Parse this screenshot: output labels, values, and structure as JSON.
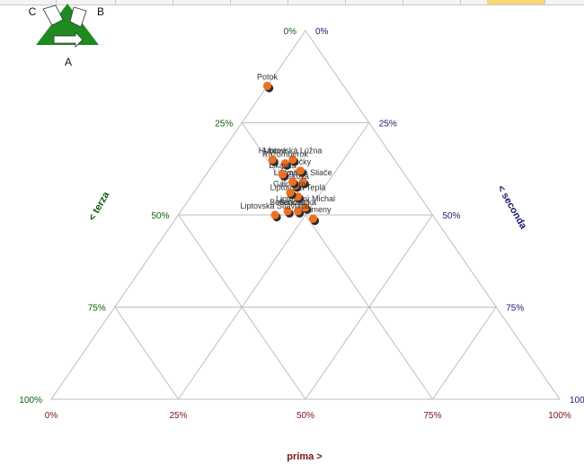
{
  "colors": {
    "grid": "#bdbdbd",
    "point": "#ee6f1f",
    "point_shadow": "#2a2a2a",
    "label": "#333333",
    "prima": "#7a1414",
    "seconda": "#1a1a6e",
    "terza": "#0e5a0e",
    "logo_green": "#1f8a1f"
  },
  "logo": {
    "c": "C",
    "b": "B",
    "a": "A"
  },
  "chart_data": {
    "type": "scatter",
    "subtype": "ternary",
    "axes": {
      "prima": {
        "label": "prima >",
        "ticks": [
          "0%",
          "25%",
          "50%",
          "75%",
          "100%"
        ]
      },
      "seconda": {
        "label": "< seconda",
        "ticks": [
          "0%",
          "25%",
          "50%",
          "75%",
          "100%"
        ]
      },
      "terza": {
        "label": "< terza",
        "ticks": [
          "0%",
          "25%",
          "50%",
          "75%",
          "100%"
        ]
      }
    },
    "grid": true,
    "points": [
      {
        "label": "Kalameny",
        "prima": 0.24,
        "seconda": 0.27,
        "terza": 0.49
      },
      {
        "label": "Liptovský Michal",
        "prima": 0.24,
        "seconda": 0.24,
        "terza": 0.52
      },
      {
        "label": "Stiavnička",
        "prima": 0.26,
        "seconda": 0.23,
        "terza": 0.51
      },
      {
        "label": "Liptovská Teplá",
        "prima": 0.24,
        "seconda": 0.21,
        "terza": 0.55
      },
      {
        "label": "Bešeňová",
        "prima": 0.28,
        "seconda": 0.21,
        "terza": 0.51
      },
      {
        "label": "Liptovské Sliače",
        "prima": 0.21,
        "seconda": 0.2,
        "terza": 0.59
      },
      {
        "label": "Lisková",
        "prima": 0.23,
        "seconda": 0.19,
        "terza": 0.58
      },
      {
        "label": "Galovany",
        "prima": 0.25,
        "seconda": 0.19,
        "terza": 0.56
      },
      {
        "label": "Švošov",
        "prima": 0.23,
        "seconda": 0.18,
        "terza": 0.59
      },
      {
        "label": "Lúčky",
        "prima": 0.2,
        "seconda": 0.18,
        "terza": 0.62
      },
      {
        "label": "Liptovská Štiavnica",
        "prima": 0.31,
        "seconda": 0.19,
        "terza": 0.5
      },
      {
        "label": "Liptovská Lúžna",
        "prima": 0.2,
        "seconda": 0.15,
        "terza": 0.65
      },
      {
        "label": "Ružomberok",
        "prima": 0.22,
        "seconda": 0.14,
        "terza": 0.64
      },
      {
        "label": "Likavka",
        "prima": 0.24,
        "seconda": 0.15,
        "terza": 0.61
      },
      {
        "label": "Hubová",
        "prima": 0.24,
        "seconda": 0.11,
        "terza": 0.65
      },
      {
        "label": "Potok",
        "prima": 0.15,
        "seconda": 0.0,
        "terza": 0.85
      }
    ]
  }
}
